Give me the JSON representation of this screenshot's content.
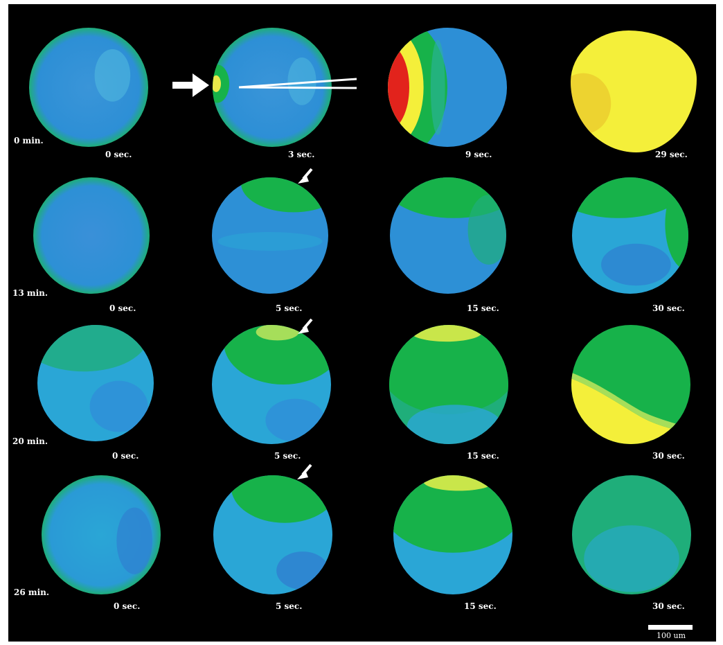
{
  "rows": [
    {
      "label": "0 min.",
      "times": [
        "0 sec.",
        "3 sec.",
        "9 sec.",
        "29 sec."
      ]
    },
    {
      "label": "13 min.",
      "times": [
        "0 sec.",
        "5 sec.",
        "15 sec.",
        "30 sec."
      ]
    },
    {
      "label": "20 min.",
      "times": [
        "0 sec.",
        "5 sec.",
        "15 sec.",
        "30 sec."
      ]
    },
    {
      "label": "26 min.",
      "times": [
        "0 sec.",
        "5 sec.",
        "15 sec.",
        "30 sec."
      ]
    }
  ],
  "scale_bar": {
    "label": "100 um"
  },
  "colors": {
    "background": "#000000",
    "low_blue": "#2f8fd8",
    "mid_blue": "#2aa6d6",
    "green": "#17b24a",
    "yellow": "#f4ef3a",
    "red": "#e2231c",
    "annotation": "#ffffff"
  }
}
